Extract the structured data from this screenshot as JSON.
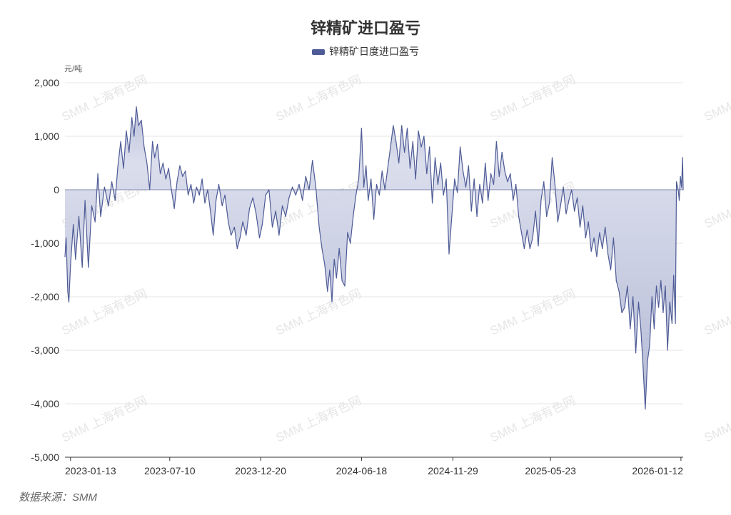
{
  "title": "锌精矿进口盈亏",
  "legend": "锌精矿日度进口盈亏",
  "unit": "元/吨",
  "source": "数据来源：SMM",
  "watermark": "SMM 上海有色网",
  "colors": {
    "line": "#4e5b96",
    "fill_top": "#a3abcc",
    "fill_zero": "#d6daea",
    "grid": "#e6e6e6",
    "axis": "#333333"
  },
  "chart_data": {
    "type": "area",
    "title": "锌精矿进口盈亏",
    "series_name": "锌精矿日度进口盈亏",
    "ylabel": "元/吨",
    "ylim": [
      -5000,
      2000
    ],
    "yticks": [
      2000,
      1000,
      0,
      -1000,
      -2000,
      -3000,
      -4000,
      -5000
    ],
    "ytick_labels": [
      "2,000",
      "1,000",
      "0",
      "-1,000",
      "-2,000",
      "-3,000",
      "-4,000",
      "-5,000"
    ],
    "x_range": [
      "2023-01-03",
      "2026-01-16"
    ],
    "xticks": [
      "2023-01-13",
      "2023-07-10",
      "2023-12-20",
      "2024-06-18",
      "2024-11-29",
      "2025-05-23",
      "2026-01-12"
    ],
    "grid": true,
    "legend_position": "top-center",
    "points": [
      [
        "2023-01-03",
        -1250
      ],
      [
        "2023-01-05",
        -900
      ],
      [
        "2023-01-08",
        -1900
      ],
      [
        "2023-01-10",
        -2100
      ],
      [
        "2023-01-13",
        -1400
      ],
      [
        "2023-01-18",
        -650
      ],
      [
        "2023-01-22",
        -1300
      ],
      [
        "2023-01-28",
        -500
      ],
      [
        "2023-02-03",
        -1450
      ],
      [
        "2023-02-08",
        -200
      ],
      [
        "2023-02-14",
        -1450
      ],
      [
        "2023-02-20",
        -300
      ],
      [
        "2023-02-26",
        -600
      ],
      [
        "2023-03-03",
        300
      ],
      [
        "2023-03-08",
        -500
      ],
      [
        "2023-03-15",
        50
      ],
      [
        "2023-03-22",
        -300
      ],
      [
        "2023-03-28",
        150
      ],
      [
        "2023-04-03",
        -200
      ],
      [
        "2023-04-08",
        450
      ],
      [
        "2023-04-13",
        900
      ],
      [
        "2023-04-18",
        400
      ],
      [
        "2023-04-23",
        1100
      ],
      [
        "2023-04-28",
        700
      ],
      [
        "2023-05-03",
        1350
      ],
      [
        "2023-05-07",
        1000
      ],
      [
        "2023-05-11",
        1550
      ],
      [
        "2023-05-15",
        1200
      ],
      [
        "2023-05-20",
        1300
      ],
      [
        "2023-05-25",
        800
      ],
      [
        "2023-05-30",
        500
      ],
      [
        "2023-06-04",
        0
      ],
      [
        "2023-06-09",
        900
      ],
      [
        "2023-06-13",
        600
      ],
      [
        "2023-06-18",
        850
      ],
      [
        "2023-06-23",
        300
      ],
      [
        "2023-06-28",
        500
      ],
      [
        "2023-07-03",
        200
      ],
      [
        "2023-07-08",
        400
      ],
      [
        "2023-07-13",
        0
      ],
      [
        "2023-07-18",
        -350
      ],
      [
        "2023-07-23",
        150
      ],
      [
        "2023-07-28",
        450
      ],
      [
        "2023-08-02",
        250
      ],
      [
        "2023-08-07",
        350
      ],
      [
        "2023-08-12",
        -100
      ],
      [
        "2023-08-17",
        100
      ],
      [
        "2023-08-22",
        -250
      ],
      [
        "2023-08-27",
        50
      ],
      [
        "2023-09-01",
        -100
      ],
      [
        "2023-09-06",
        200
      ],
      [
        "2023-09-11",
        -250
      ],
      [
        "2023-09-16",
        0
      ],
      [
        "2023-09-21",
        -400
      ],
      [
        "2023-09-26",
        -850
      ],
      [
        "2023-10-01",
        -200
      ],
      [
        "2023-10-06",
        100
      ],
      [
        "2023-10-12",
        -300
      ],
      [
        "2023-10-17",
        -100
      ],
      [
        "2023-10-23",
        -600
      ],
      [
        "2023-10-28",
        -850
      ],
      [
        "2023-11-03",
        -700
      ],
      [
        "2023-11-08",
        -1100
      ],
      [
        "2023-11-13",
        -900
      ],
      [
        "2023-11-18",
        -600
      ],
      [
        "2023-11-24",
        -850
      ],
      [
        "2023-11-30",
        -350
      ],
      [
        "2023-12-06",
        -150
      ],
      [
        "2023-12-12",
        -450
      ],
      [
        "2023-12-18",
        -900
      ],
      [
        "2023-12-23",
        -650
      ],
      [
        "2023-12-29",
        -100
      ],
      [
        "2024-01-04",
        0
      ],
      [
        "2024-01-10",
        -700
      ],
      [
        "2024-01-16",
        -400
      ],
      [
        "2024-01-22",
        -850
      ],
      [
        "2024-01-28",
        -300
      ],
      [
        "2024-02-03",
        -500
      ],
      [
        "2024-02-09",
        -150
      ],
      [
        "2024-02-15",
        50
      ],
      [
        "2024-02-21",
        -100
      ],
      [
        "2024-02-27",
        100
      ],
      [
        "2024-03-04",
        -200
      ],
      [
        "2024-03-10",
        250
      ],
      [
        "2024-03-16",
        0
      ],
      [
        "2024-03-22",
        550
      ],
      [
        "2024-03-28",
        50
      ],
      [
        "2024-04-03",
        -700
      ],
      [
        "2024-04-08",
        -1100
      ],
      [
        "2024-04-13",
        -1400
      ],
      [
        "2024-04-18",
        -1900
      ],
      [
        "2024-04-22",
        -1500
      ],
      [
        "2024-04-26",
        -2100
      ],
      [
        "2024-04-30",
        -1300
      ],
      [
        "2024-05-04",
        -1650
      ],
      [
        "2024-05-09",
        -1100
      ],
      [
        "2024-05-14",
        -1700
      ],
      [
        "2024-05-19",
        -1800
      ],
      [
        "2024-05-24",
        -800
      ],
      [
        "2024-05-29",
        -1000
      ],
      [
        "2024-06-03",
        -500
      ],
      [
        "2024-06-08",
        -100
      ],
      [
        "2024-06-13",
        200
      ],
      [
        "2024-06-18",
        1150
      ],
      [
        "2024-06-22",
        50
      ],
      [
        "2024-06-26",
        450
      ],
      [
        "2024-06-30",
        -200
      ],
      [
        "2024-07-05",
        200
      ],
      [
        "2024-07-10",
        -550
      ],
      [
        "2024-07-15",
        100
      ],
      [
        "2024-07-20",
        -100
      ],
      [
        "2024-07-25",
        350
      ],
      [
        "2024-07-30",
        0
      ],
      [
        "2024-08-04",
        400
      ],
      [
        "2024-08-09",
        800
      ],
      [
        "2024-08-14",
        1200
      ],
      [
        "2024-08-19",
        900
      ],
      [
        "2024-08-24",
        500
      ],
      [
        "2024-08-29",
        1200
      ],
      [
        "2024-09-03",
        700
      ],
      [
        "2024-09-08",
        1150
      ],
      [
        "2024-09-13",
        400
      ],
      [
        "2024-09-18",
        900
      ],
      [
        "2024-09-23",
        200
      ],
      [
        "2024-09-28",
        1100
      ],
      [
        "2024-10-03",
        800
      ],
      [
        "2024-10-08",
        1000
      ],
      [
        "2024-10-13",
        300
      ],
      [
        "2024-10-18",
        800
      ],
      [
        "2024-10-23",
        -250
      ],
      [
        "2024-10-28",
        600
      ],
      [
        "2024-11-02",
        100
      ],
      [
        "2024-11-07",
        500
      ],
      [
        "2024-11-12",
        -100
      ],
      [
        "2024-11-17",
        200
      ],
      [
        "2024-11-22",
        -1200
      ],
      [
        "2024-11-27",
        -500
      ],
      [
        "2024-12-02",
        200
      ],
      [
        "2024-12-07",
        -50
      ],
      [
        "2024-12-12",
        800
      ],
      [
        "2024-12-17",
        350
      ],
      [
        "2024-12-22",
        50
      ],
      [
        "2024-12-27",
        450
      ],
      [
        "2025-01-01",
        -400
      ],
      [
        "2025-01-06",
        200
      ],
      [
        "2025-01-11",
        -500
      ],
      [
        "2025-01-16",
        100
      ],
      [
        "2025-01-21",
        -250
      ],
      [
        "2025-01-26",
        500
      ],
      [
        "2025-01-31",
        -200
      ],
      [
        "2025-02-05",
        300
      ],
      [
        "2025-02-10",
        100
      ],
      [
        "2025-02-15",
        900
      ],
      [
        "2025-02-20",
        250
      ],
      [
        "2025-02-25",
        700
      ],
      [
        "2025-03-02",
        350
      ],
      [
        "2025-03-07",
        150
      ],
      [
        "2025-03-12",
        300
      ],
      [
        "2025-03-17",
        -200
      ],
      [
        "2025-03-22",
        100
      ],
      [
        "2025-03-27",
        -500
      ],
      [
        "2025-04-01",
        -800
      ],
      [
        "2025-04-06",
        -1100
      ],
      [
        "2025-04-11",
        -750
      ],
      [
        "2025-04-16",
        -1100
      ],
      [
        "2025-04-21",
        -900
      ],
      [
        "2025-04-26",
        -400
      ],
      [
        "2025-05-01",
        -1050
      ],
      [
        "2025-05-06",
        -200
      ],
      [
        "2025-05-11",
        150
      ],
      [
        "2025-05-16",
        -500
      ],
      [
        "2025-05-21",
        -250
      ],
      [
        "2025-05-26",
        600
      ],
      [
        "2025-05-31",
        100
      ],
      [
        "2025-06-05",
        -600
      ],
      [
        "2025-06-10",
        -300
      ],
      [
        "2025-06-15",
        50
      ],
      [
        "2025-06-20",
        -450
      ],
      [
        "2025-06-25",
        -200
      ],
      [
        "2025-06-30",
        0
      ],
      [
        "2025-07-05",
        -400
      ],
      [
        "2025-07-10",
        -150
      ],
      [
        "2025-07-15",
        -700
      ],
      [
        "2025-07-20",
        -300
      ],
      [
        "2025-07-25",
        -900
      ],
      [
        "2025-07-30",
        -600
      ],
      [
        "2025-08-04",
        -1150
      ],
      [
        "2025-08-09",
        -900
      ],
      [
        "2025-08-14",
        -1250
      ],
      [
        "2025-08-19",
        -800
      ],
      [
        "2025-08-24",
        -1100
      ],
      [
        "2025-08-29",
        -700
      ],
      [
        "2025-09-03",
        -1200
      ],
      [
        "2025-09-08",
        -1500
      ],
      [
        "2025-09-13",
        -900
      ],
      [
        "2025-09-18",
        -1700
      ],
      [
        "2025-09-23",
        -1900
      ],
      [
        "2025-09-28",
        -2300
      ],
      [
        "2025-10-03",
        -2200
      ],
      [
        "2025-10-08",
        -1800
      ],
      [
        "2025-10-13",
        -2600
      ],
      [
        "2025-10-18",
        -2000
      ],
      [
        "2025-10-23",
        -3050
      ],
      [
        "2025-10-28",
        -2100
      ],
      [
        "2025-11-01",
        -2600
      ],
      [
        "2025-11-05",
        -3300
      ],
      [
        "2025-11-09",
        -4100
      ],
      [
        "2025-11-13",
        -3200
      ],
      [
        "2025-11-17",
        -2900
      ],
      [
        "2025-11-21",
        -2000
      ],
      [
        "2025-11-25",
        -2600
      ],
      [
        "2025-11-29",
        -1800
      ],
      [
        "2025-12-03",
        -2200
      ],
      [
        "2025-12-07",
        -1700
      ],
      [
        "2025-12-11",
        -2300
      ],
      [
        "2025-12-15",
        -1800
      ],
      [
        "2025-12-19",
        -3000
      ],
      [
        "2025-12-23",
        -2100
      ],
      [
        "2025-12-27",
        -2500
      ],
      [
        "2025-12-30",
        -1600
      ],
      [
        "2026-01-02",
        -2500
      ],
      [
        "2026-01-04",
        150
      ],
      [
        "2026-01-07",
        0
      ],
      [
        "2026-01-09",
        -200
      ],
      [
        "2026-01-11",
        250
      ],
      [
        "2026-01-13",
        50
      ],
      [
        "2026-01-15",
        600
      ],
      [
        "2026-01-16",
        0
      ]
    ]
  }
}
